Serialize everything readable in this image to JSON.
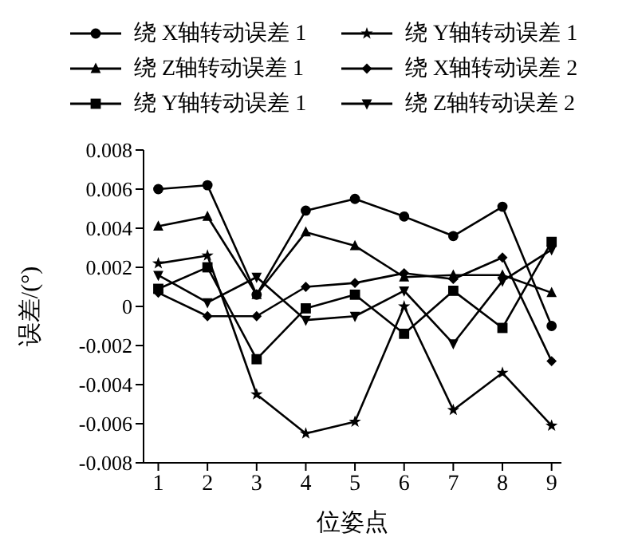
{
  "chart_data": {
    "type": "line",
    "xlabel": "位姿点",
    "ylabel": "误差/(°)",
    "categories": [
      "1",
      "2",
      "3",
      "4",
      "5",
      "6",
      "7",
      "8",
      "9"
    ],
    "series": [
      {
        "name": "绕 X轴转动误差 1",
        "color": "#000000",
        "marker": "circle",
        "values": [
          0.006,
          0.0062,
          0.0006,
          0.0049,
          0.0055,
          0.0046,
          0.0036,
          0.0051,
          -0.001
        ]
      },
      {
        "name": "绕 Y轴转动误差 1",
        "color": "#000000",
        "marker": "star",
        "values": [
          0.0022,
          0.0026,
          -0.0045,
          -0.0065,
          -0.0059,
          0,
          -0.0053,
          -0.0034,
          -0.0061
        ]
      },
      {
        "name": "绕 Z轴转动误差 1",
        "color": "#000000",
        "marker": "triangle",
        "values": [
          0.0041,
          0.0046,
          0.0006,
          0.0038,
          0.0031,
          0.0015,
          0.0016,
          0.0016,
          0.0007
        ]
      },
      {
        "name": "绕 X轴转动误差 2",
        "color": "#000000",
        "marker": "diamond",
        "values": [
          0.0007,
          -0.0005,
          -0.0005,
          0.001,
          0.0012,
          0.0017,
          0.0014,
          0.0025,
          -0.0028
        ]
      },
      {
        "name": "绕 Y轴转动误差 1",
        "color": "#000000",
        "marker": "square",
        "values": [
          0.0009,
          0.002,
          -0.0027,
          -0.0001,
          0.0006,
          -0.0014,
          0.0008,
          -0.0011,
          0.0033
        ]
      },
      {
        "name": "绕 Z轴转动误差 2",
        "color": "#000000",
        "marker": "triangle-down",
        "values": [
          0.0016,
          0.0002,
          0.0015,
          -0.0007,
          -0.0005,
          0.0008,
          -0.0019,
          0.0013,
          0.0029
        ]
      }
    ],
    "ylim": [
      -0.008,
      0.008
    ],
    "yticks": [
      -0.008,
      -0.006,
      -0.004,
      -0.002,
      0,
      0.002,
      0.004,
      0.006,
      0.008
    ],
    "grid": false,
    "legend": "top",
    "line_style": "solid"
  }
}
